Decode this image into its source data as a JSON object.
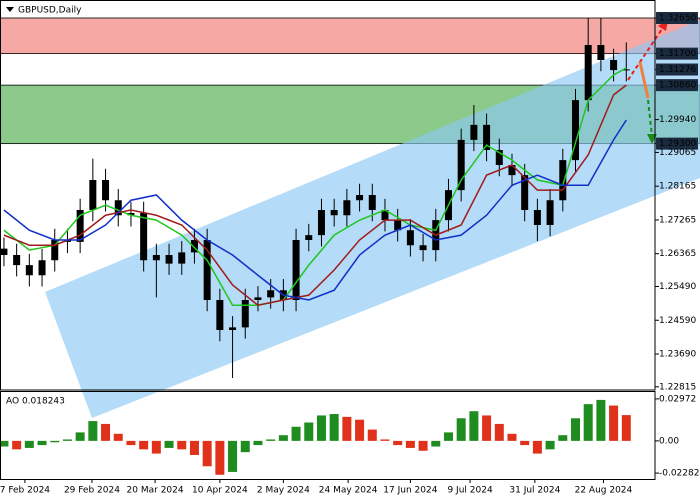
{
  "chart_data": [
    {
      "type": "candlestick",
      "title": "GBPUSD,Daily",
      "color": "#000000",
      "xlim": [
        -0.31,
        51.26
      ],
      "xticks": [
        {
          "value": 1.65,
          "label": "7 Feb 2024"
        },
        {
          "value": 6.93,
          "label": "29 Feb 2024"
        },
        {
          "value": 11.9,
          "label": "20 Mar 2024"
        },
        {
          "value": 17.0,
          "label": "10 Apr 2024"
        },
        {
          "value": 22.0,
          "label": "2 May 2024"
        },
        {
          "value": 27.1,
          "label": "24 May 2024"
        },
        {
          "value": 32.0,
          "label": "17 Jun 2024"
        },
        {
          "value": 36.7,
          "label": "9 Jul 2024"
        },
        {
          "value": 41.8,
          "label": "31 Jul 2024"
        },
        {
          "value": 47.2,
          "label": "22 Aug 2024"
        }
      ],
      "ylim": [
        1.2273,
        1.3313
      ],
      "yticks": [
        {
          "value": 1.3265,
          "label": "1.32650"
        },
        {
          "value": 1.317,
          "label": "1.31700"
        },
        {
          "value": 1.31276,
          "label": "1.31276"
        },
        {
          "value": 1.3086,
          "label": "1.30860"
        },
        {
          "value": 1.2994,
          "label": "1.29940"
        },
        {
          "value": 1.293,
          "label": "1.29300"
        },
        {
          "value": 1.29065,
          "label": "1.29065"
        },
        {
          "value": 1.28165,
          "label": "1.28165"
        },
        {
          "value": 1.27265,
          "label": "1.27265"
        },
        {
          "value": 1.26365,
          "label": "1.26365"
        },
        {
          "value": 1.2549,
          "label": "1.25490"
        },
        {
          "value": 1.2459,
          "label": "1.24590"
        },
        {
          "value": 1.2369,
          "label": "1.23690"
        },
        {
          "value": 1.22815,
          "label": "1.22815"
        }
      ],
      "open": [
        1.265,
        1.2633,
        1.2606,
        1.2579,
        1.2619,
        1.2673,
        1.2668,
        1.2753,
        1.2833,
        1.2779,
        1.2739,
        1.2745,
        1.2619,
        1.2633,
        1.261,
        1.264,
        1.2673,
        1.2513,
        1.2433,
        1.244,
        1.2513,
        1.252,
        1.2539,
        1.2513,
        1.2673,
        1.2686,
        1.2753,
        1.2739,
        1.2779,
        1.2793,
        1.2753,
        1.2726,
        1.2699,
        1.2659,
        1.2646,
        1.2726,
        1.2806,
        1.294,
        1.298,
        1.2913,
        1.2873,
        1.2846,
        1.2753,
        1.2713,
        1.2779,
        1.2886,
        1.3046,
        1.3193,
        1.3153,
        1.3126
      ],
      "high": [
        1.268,
        1.2663,
        1.2636,
        1.2649,
        1.2703,
        1.2703,
        1.2783,
        1.289,
        1.2863,
        1.2809,
        1.2775,
        1.2775,
        1.2663,
        1.2663,
        1.267,
        1.2703,
        1.2703,
        1.2543,
        1.247,
        1.2543,
        1.255,
        1.2569,
        1.2569,
        1.2703,
        1.2716,
        1.2783,
        1.2783,
        1.2809,
        1.2823,
        1.2823,
        1.2783,
        1.2756,
        1.2729,
        1.2689,
        1.2756,
        1.2836,
        1.297,
        1.3033,
        1.301,
        1.2943,
        1.2903,
        1.2876,
        1.2783,
        1.2809,
        1.2916,
        1.3076,
        1.3265,
        1.3265,
        1.3183,
        1.32
      ],
      "low": [
        1.2603,
        1.2576,
        1.2549,
        1.2549,
        1.2589,
        1.2638,
        1.2638,
        1.2723,
        1.2749,
        1.2709,
        1.2709,
        1.2589,
        1.252,
        1.258,
        1.258,
        1.261,
        1.2483,
        1.2403,
        1.2305,
        1.241,
        1.2483,
        1.249,
        1.2483,
        1.2483,
        1.2643,
        1.2656,
        1.2709,
        1.2709,
        1.2749,
        1.2723,
        1.2696,
        1.2669,
        1.2629,
        1.2616,
        1.2616,
        1.2696,
        1.2776,
        1.291,
        1.2883,
        1.2843,
        1.2816,
        1.2723,
        1.267,
        1.2683,
        1.2749,
        1.2856,
        1.3016,
        1.3123,
        1.3096,
        1.3096
      ],
      "close": [
        1.2633,
        1.2606,
        1.2579,
        1.2619,
        1.2673,
        1.2668,
        1.2753,
        1.2833,
        1.2779,
        1.2739,
        1.2745,
        1.2619,
        1.2633,
        1.261,
        1.264,
        1.2673,
        1.2513,
        1.2433,
        1.244,
        1.2513,
        1.252,
        1.2539,
        1.2513,
        1.2673,
        1.2686,
        1.2753,
        1.2739,
        1.2779,
        1.2793,
        1.2753,
        1.2726,
        1.2699,
        1.2659,
        1.2646,
        1.2726,
        1.2806,
        1.294,
        1.298,
        1.2913,
        1.2873,
        1.2846,
        1.2753,
        1.2713,
        1.2779,
        1.2886,
        1.3046,
        1.3193,
        1.3153,
        1.3126,
        1.3128
      ],
      "series": [
        {
          "color": "#1ec81e",
          "x": [
            0,
            2,
            4,
            6,
            8,
            10,
            12,
            14,
            16,
            18,
            20,
            22,
            24,
            26,
            28,
            30,
            32,
            34,
            36,
            38,
            40,
            42,
            44,
            46,
            48,
            49
          ],
          "values": [
            1.2699,
            1.2646,
            1.2659,
            1.2739,
            1.2766,
            1.2739,
            1.2726,
            1.2686,
            1.2619,
            1.2499,
            1.2499,
            1.2513,
            1.2606,
            1.2686,
            1.2726,
            1.2753,
            1.2713,
            1.2699,
            1.2833,
            1.2926,
            1.2886,
            1.2833,
            1.2819,
            1.3046,
            1.3113,
            1.3132
          ]
        },
        {
          "color": "#a01c1c",
          "x": [
            0,
            2,
            4,
            6,
            8,
            10,
            12,
            14,
            16,
            18,
            20,
            22,
            24,
            26,
            28,
            30,
            32,
            34,
            36,
            38,
            40,
            42,
            44,
            46,
            48,
            49
          ],
          "values": [
            1.2686,
            1.2659,
            1.2659,
            1.2686,
            1.2739,
            1.2753,
            1.2739,
            1.2713,
            1.2646,
            1.2553,
            1.2499,
            1.2513,
            1.2526,
            1.2593,
            1.2673,
            1.2726,
            1.2726,
            1.2686,
            1.2713,
            1.2846,
            1.2873,
            1.2806,
            1.2806,
            1.29,
            1.306,
            1.3086
          ]
        },
        {
          "color": "#1030c8",
          "x": [
            0,
            2,
            4,
            6,
            8,
            10,
            12,
            14,
            16,
            18,
            20,
            22,
            24,
            26,
            28,
            30,
            32,
            34,
            36,
            38,
            40,
            42,
            44,
            46,
            48,
            49
          ],
          "values": [
            1.2753,
            1.2699,
            1.2673,
            1.2673,
            1.2713,
            1.2779,
            1.2793,
            1.2726,
            1.2673,
            1.2633,
            1.2579,
            1.2526,
            1.2513,
            1.2539,
            1.2633,
            1.2686,
            1.2713,
            1.2673,
            1.2686,
            1.2739,
            1.2819,
            1.2846,
            1.2819,
            1.2819,
            1.294,
            1.2993
          ]
        }
      ]
    },
    {
      "type": "bar",
      "label": "AO 0.018243",
      "up_color": "#1e8c1e",
      "down_color": "#e0321a",
      "ylim": [
        -0.027,
        0.0346
      ],
      "yticks": [
        {
          "value": 0.02972,
          "label": "0.02972"
        },
        {
          "value": 0,
          "label": "0.00"
        },
        {
          "value": -0.022821,
          "label": "-0.022821"
        }
      ],
      "values": [
        -0.004,
        -0.006,
        -0.005,
        -0.003,
        -0.001,
        0.001,
        0.006,
        0.014,
        0.012,
        0.005,
        -0.003,
        -0.006,
        -0.009,
        -0.005,
        -0.006,
        -0.01,
        -0.018,
        -0.024,
        -0.022,
        -0.008,
        -0.003,
        0.001,
        0.004,
        0.01,
        0.013,
        0.018,
        0.019,
        0.017,
        0.015,
        0.008,
        0.001,
        -0.003,
        -0.005,
        -0.007,
        -0.004,
        0.006,
        0.016,
        0.021,
        0.018,
        0.012,
        0.005,
        -0.003,
        -0.009,
        -0.006,
        0.004,
        0.016,
        0.026,
        0.029,
        0.025,
        0.018243
      ]
    }
  ]
}
